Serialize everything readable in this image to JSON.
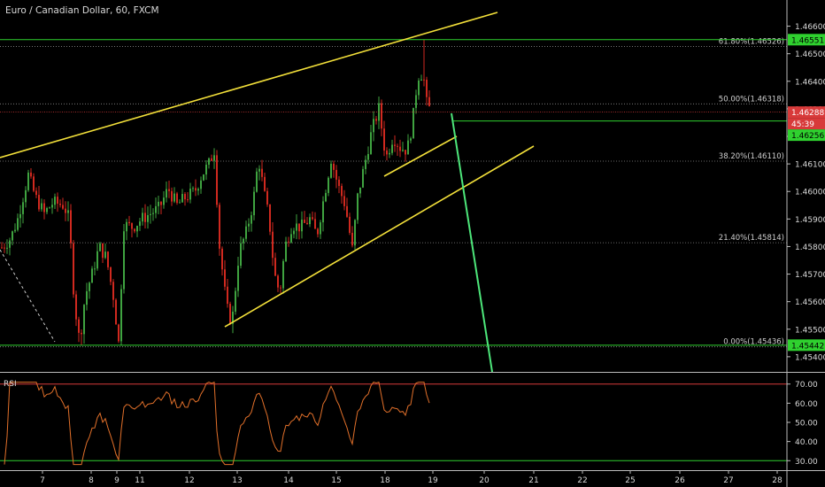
{
  "chart_data": [
    {
      "type": "candlestick",
      "title": "Euro / Canadian Dollar, 60, FXCM",
      "xlabel": "",
      "ylabel": "",
      "x_ticks": [
        "7",
        "8",
        "9",
        "11",
        "12",
        "13",
        "14",
        "15",
        "18",
        "19",
        "20",
        "21",
        "22",
        "25",
        "26",
        "27",
        "28"
      ],
      "y_ticks": [
        "1.46600",
        "1.46500",
        "1.46400",
        "1.46300",
        "1.46200",
        "1.46100",
        "1.46000",
        "1.45900",
        "1.45800",
        "1.45700",
        "1.45600",
        "1.45500",
        "1.45400"
      ],
      "ylim": [
        1.45345,
        1.46695
      ],
      "price_labels": {
        "high": "1.46551",
        "current": "1.46288",
        "countdown": "45:39",
        "support": "1.46256",
        "low": "1.45442"
      },
      "fib_levels": [
        {
          "label": "61.80%(1.46526)",
          "value": 1.46526
        },
        {
          "label": "50.00%(1.46318)",
          "value": 1.46318
        },
        {
          "label": "38.20%(1.46110)",
          "value": 1.4611
        },
        {
          "label": "21.40%(1.45814)",
          "value": 1.45814
        },
        {
          "label": "0.00%(1.45436)",
          "value": 1.45436
        }
      ],
      "colors": {
        "up": "#3fa340",
        "down": "#d0291f",
        "trendline": "#f3e03a",
        "projection": "#4de67a",
        "hline_green": "#2fd12f",
        "current_price": "#d83a3a",
        "fib": "#8a8a8a",
        "rsi_line": "#e2702a"
      }
    },
    {
      "type": "line",
      "title": "RSI",
      "y_ticks": [
        "70.00",
        "60.00",
        "50.00",
        "40.00",
        "30.00"
      ],
      "ylim": [
        25.5,
        74.5
      ],
      "levels": [
        70,
        30
      ],
      "colors": {
        "line": "#e2702a",
        "upper": "#d83a3a",
        "lower": "#2fd12f"
      }
    }
  ]
}
